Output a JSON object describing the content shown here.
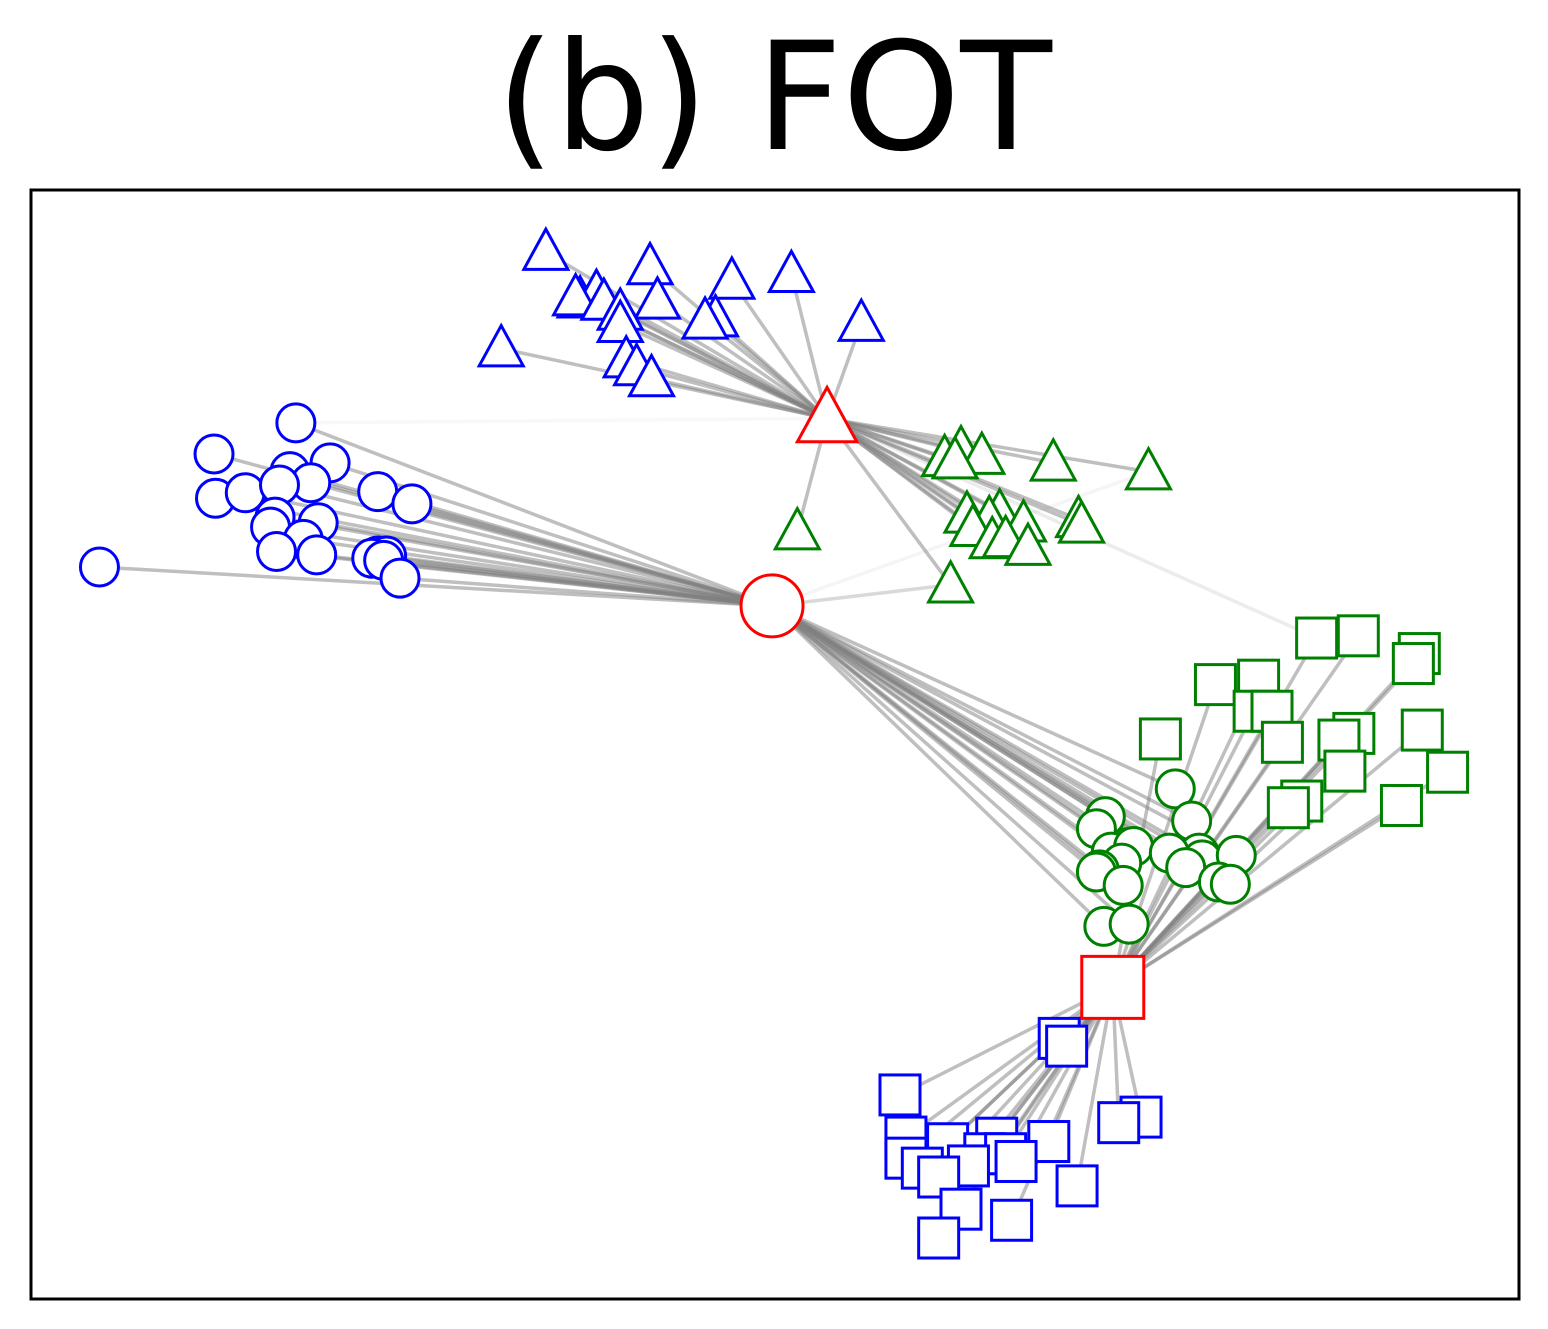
{
  "chart_data": {
    "type": "scatter",
    "title": "(b) FOT",
    "xlabel": "",
    "ylabel": "",
    "xlim": [
      0,
      100
    ],
    "ylim": [
      0,
      100
    ],
    "grid": false,
    "legend": "none",
    "colors": {
      "source": "#0000ff",
      "target": "#008000",
      "center": "#ff0000",
      "link": "#808080"
    },
    "centers": [
      {
        "shape": "circle",
        "x": 49.8,
        "y": 62.5
      },
      {
        "shape": "triangle",
        "x": 53.5,
        "y": 79.4
      },
      {
        "shape": "square",
        "x": 72.7,
        "y": 28.1
      }
    ],
    "series": [
      {
        "marker": "circle",
        "role": "source",
        "center": 0,
        "x": [
          17.8,
          12.3,
          20.1,
          12.4,
          14.4,
          17.4,
          18.8,
          16.7,
          23.3,
          25.6,
          16.4,
          19.3,
          16.1,
          18.3,
          23.3,
          23.9,
          4.6,
          16.5,
          19.2,
          22.9,
          23.7,
          24.8
        ],
        "y": [
          79.0,
          76.2,
          75.4,
          72.2,
          72.7,
          74.6,
          73.6,
          73.4,
          72.8,
          71.7,
          70.5,
          70.0,
          69.6,
          68.5,
          67.0,
          67.0,
          66.0,
          67.4,
          67.1,
          66.8,
          66.6,
          65.0
        ]
      },
      {
        "marker": "circle",
        "role": "target",
        "center": 0,
        "x": [
          76.9,
          72.2,
          78.0,
          71.6,
          73.7,
          72.6,
          74.1,
          78.5,
          76.5,
          78.7,
          81.0,
          73.3,
          71.8,
          77.6,
          79.8,
          80.6,
          71.6,
          73.4,
          72.1,
          73.8
        ],
        "y": [
          46.0,
          43.5,
          43.1,
          42.4,
          40.7,
          40.3,
          40.8,
          40.2,
          40.2,
          39.6,
          40.0,
          39.3,
          38.7,
          38.9,
          37.6,
          37.4,
          38.5,
          37.3,
          33.6,
          33.8
        ]
      },
      {
        "marker": "triangle",
        "role": "source",
        "center": 1,
        "x": [
          34.6,
          41.6,
          47.1,
          51.1,
          36.9,
          38.0,
          36.6,
          42.1,
          38.5,
          39.6,
          39.6,
          46.0,
          45.3,
          31.6,
          40.0,
          40.7,
          41.7,
          55.8
        ],
        "y": [
          94.4,
          93.1,
          91.8,
          92.4,
          90.1,
          90.7,
          90.3,
          90.0,
          89.9,
          89.0,
          87.9,
          88.4,
          88.2,
          85.7,
          84.7,
          84.0,
          83.0,
          88.0
        ]
      },
      {
        "marker": "triangle",
        "role": "target",
        "center": 1,
        "x": [
          62.5,
          61.4,
          63.9,
          68.7,
          75.1,
          62.1,
          65.1,
          62.9,
          64.4,
          70.4,
          63.3,
          70.6,
          66.7,
          64.6,
          65.5,
          67.0,
          51.5,
          61.8
        ],
        "y": [
          76.6,
          75.8,
          76.0,
          75.4,
          74.6,
          75.6,
          70.9,
          70.7,
          70.3,
          70.3,
          69.5,
          69.8,
          69.9,
          68.4,
          68.5,
          67.8,
          69.2,
          64.4
        ]
      },
      {
        "marker": "square",
        "role": "source",
        "center": 2,
        "x": [
          69.1,
          69.6,
          58.4,
          74.6,
          73.1,
          58.8,
          61.6,
          64.9,
          68.4,
          58.8,
          64.1,
          65.5,
          63.0,
          59.9,
          66.2,
          61.0,
          70.3,
          62.5,
          65.9,
          61.0
        ],
        "y": [
          23.5,
          22.8,
          18.4,
          16.4,
          15.9,
          14.6,
          14.0,
          14.5,
          14.2,
          12.7,
          13.1,
          13.1,
          12.0,
          11.8,
          12.4,
          11.0,
          10.2,
          8.1,
          7.1,
          5.5
        ]
      },
      {
        "marker": "square",
        "role": "target",
        "center": 2,
        "x": [
          86.4,
          89.2,
          93.3,
          92.9,
          79.6,
          82.5,
          82.2,
          88.9,
          83.4,
          75.9,
          84.1,
          87.9,
          93.5,
          88.3,
          95.2,
          85.4,
          84.5,
          92.1
        ],
        "y": [
          59.6,
          59.8,
          58.2,
          57.3,
          55.4,
          55.8,
          53.0,
          51.0,
          53.0,
          50.5,
          50.2,
          50.4,
          51.3,
          47.6,
          47.5,
          44.9,
          44.3,
          44.5
        ]
      }
    ],
    "extra_links": [
      {
        "from_series": 3,
        "index": 17,
        "center": 0,
        "alpha": 0.3
      },
      {
        "from_series": 5,
        "index": 0,
        "center": 1,
        "alpha": 0.15
      },
      {
        "from_series": 0,
        "index": 0,
        "center": 1,
        "alpha": 0.06
      },
      {
        "from_series": 3,
        "index": 4,
        "center": 0,
        "alpha": 0.08
      }
    ]
  }
}
